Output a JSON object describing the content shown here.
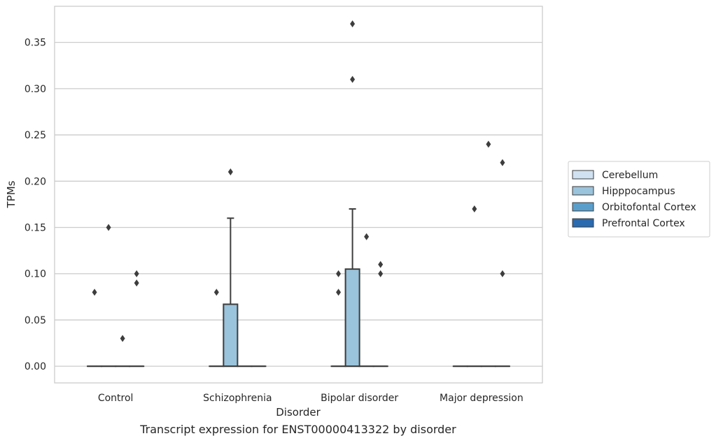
{
  "caption": "Transcript expression for ENST00000413322 by disorder",
  "chart_data": {
    "type": "box",
    "xlabel": "Disorder",
    "ylabel": "TPMs",
    "categories": [
      "Control",
      "Schizophrenia",
      "Bipolar disorder",
      "Major depression"
    ],
    "ylim": [
      -0.018,
      0.389
    ],
    "yticks": [
      0.0,
      0.05,
      0.1,
      0.15,
      0.2,
      0.25,
      0.3,
      0.35
    ],
    "ytick_labels": [
      "0.00",
      "0.05",
      "0.10",
      "0.15",
      "0.20",
      "0.25",
      "0.30",
      "0.35"
    ],
    "grid": true,
    "legend_position": "right",
    "series": [
      {
        "name": "Cerebellum",
        "color": "#d0e1f2",
        "boxes": [
          {
            "category": "Control",
            "q1": 0,
            "median": 0,
            "q3": 0,
            "whisker_low": 0,
            "whisker_high": 0,
            "outliers": [
              0.08
            ]
          },
          {
            "category": "Schizophrenia",
            "q1": 0,
            "median": 0,
            "q3": 0,
            "whisker_low": 0,
            "whisker_high": 0,
            "outliers": [
              0.08
            ]
          },
          {
            "category": "Bipolar disorder",
            "q1": 0,
            "median": 0,
            "q3": 0,
            "whisker_low": 0,
            "whisker_high": 0,
            "outliers": [
              0.08,
              0.1
            ]
          },
          {
            "category": "Major depression",
            "q1": 0,
            "median": 0,
            "q3": 0,
            "whisker_low": 0,
            "whisker_high": 0,
            "outliers": []
          }
        ]
      },
      {
        "name": "Hipppocampus",
        "color": "#9ac3dc",
        "boxes": [
          {
            "category": "Control",
            "q1": 0,
            "median": 0,
            "q3": 0,
            "whisker_low": 0,
            "whisker_high": 0,
            "outliers": [
              0.15
            ]
          },
          {
            "category": "Schizophrenia",
            "q1": 0,
            "median": 0,
            "q3": 0.067,
            "whisker_low": 0,
            "whisker_high": 0.16,
            "outliers": [
              0.21
            ]
          },
          {
            "category": "Bipolar disorder",
            "q1": 0,
            "median": 0,
            "q3": 0.105,
            "whisker_low": 0,
            "whisker_high": 0.17,
            "outliers": [
              0.31,
              0.37
            ]
          },
          {
            "category": "Major depression",
            "q1": 0,
            "median": 0,
            "q3": 0,
            "whisker_low": 0,
            "whisker_high": 0,
            "outliers": [
              0.17
            ]
          }
        ]
      },
      {
        "name": "Orbitofontal Cortex",
        "color": "#5a9fcc",
        "boxes": [
          {
            "category": "Control",
            "q1": 0,
            "median": 0,
            "q3": 0,
            "whisker_low": 0,
            "whisker_high": 0,
            "outliers": [
              0.03
            ]
          },
          {
            "category": "Schizophrenia",
            "q1": 0,
            "median": 0,
            "q3": 0,
            "whisker_low": 0,
            "whisker_high": 0,
            "outliers": []
          },
          {
            "category": "Bipolar disorder",
            "q1": 0,
            "median": 0,
            "q3": 0,
            "whisker_low": 0,
            "whisker_high": 0,
            "outliers": [
              0.14
            ]
          },
          {
            "category": "Major depression",
            "q1": 0,
            "median": 0,
            "q3": 0,
            "whisker_low": 0,
            "whisker_high": 0,
            "outliers": [
              0.24
            ]
          }
        ]
      },
      {
        "name": "Prefrontal Cortex",
        "color": "#2a6aaf",
        "boxes": [
          {
            "category": "Control",
            "q1": 0,
            "median": 0,
            "q3": 0,
            "whisker_low": 0,
            "whisker_high": 0,
            "outliers": [
              0.09,
              0.1
            ]
          },
          {
            "category": "Schizophrenia",
            "q1": 0,
            "median": 0,
            "q3": 0,
            "whisker_low": 0,
            "whisker_high": 0,
            "outliers": []
          },
          {
            "category": "Bipolar disorder",
            "q1": 0,
            "median": 0,
            "q3": 0,
            "whisker_low": 0,
            "whisker_high": 0,
            "outliers": [
              0.1,
              0.11
            ]
          },
          {
            "category": "Major depression",
            "q1": 0,
            "median": 0,
            "q3": 0,
            "whisker_low": 0,
            "whisker_high": 0,
            "outliers": [
              0.1,
              0.22
            ]
          }
        ]
      }
    ]
  }
}
